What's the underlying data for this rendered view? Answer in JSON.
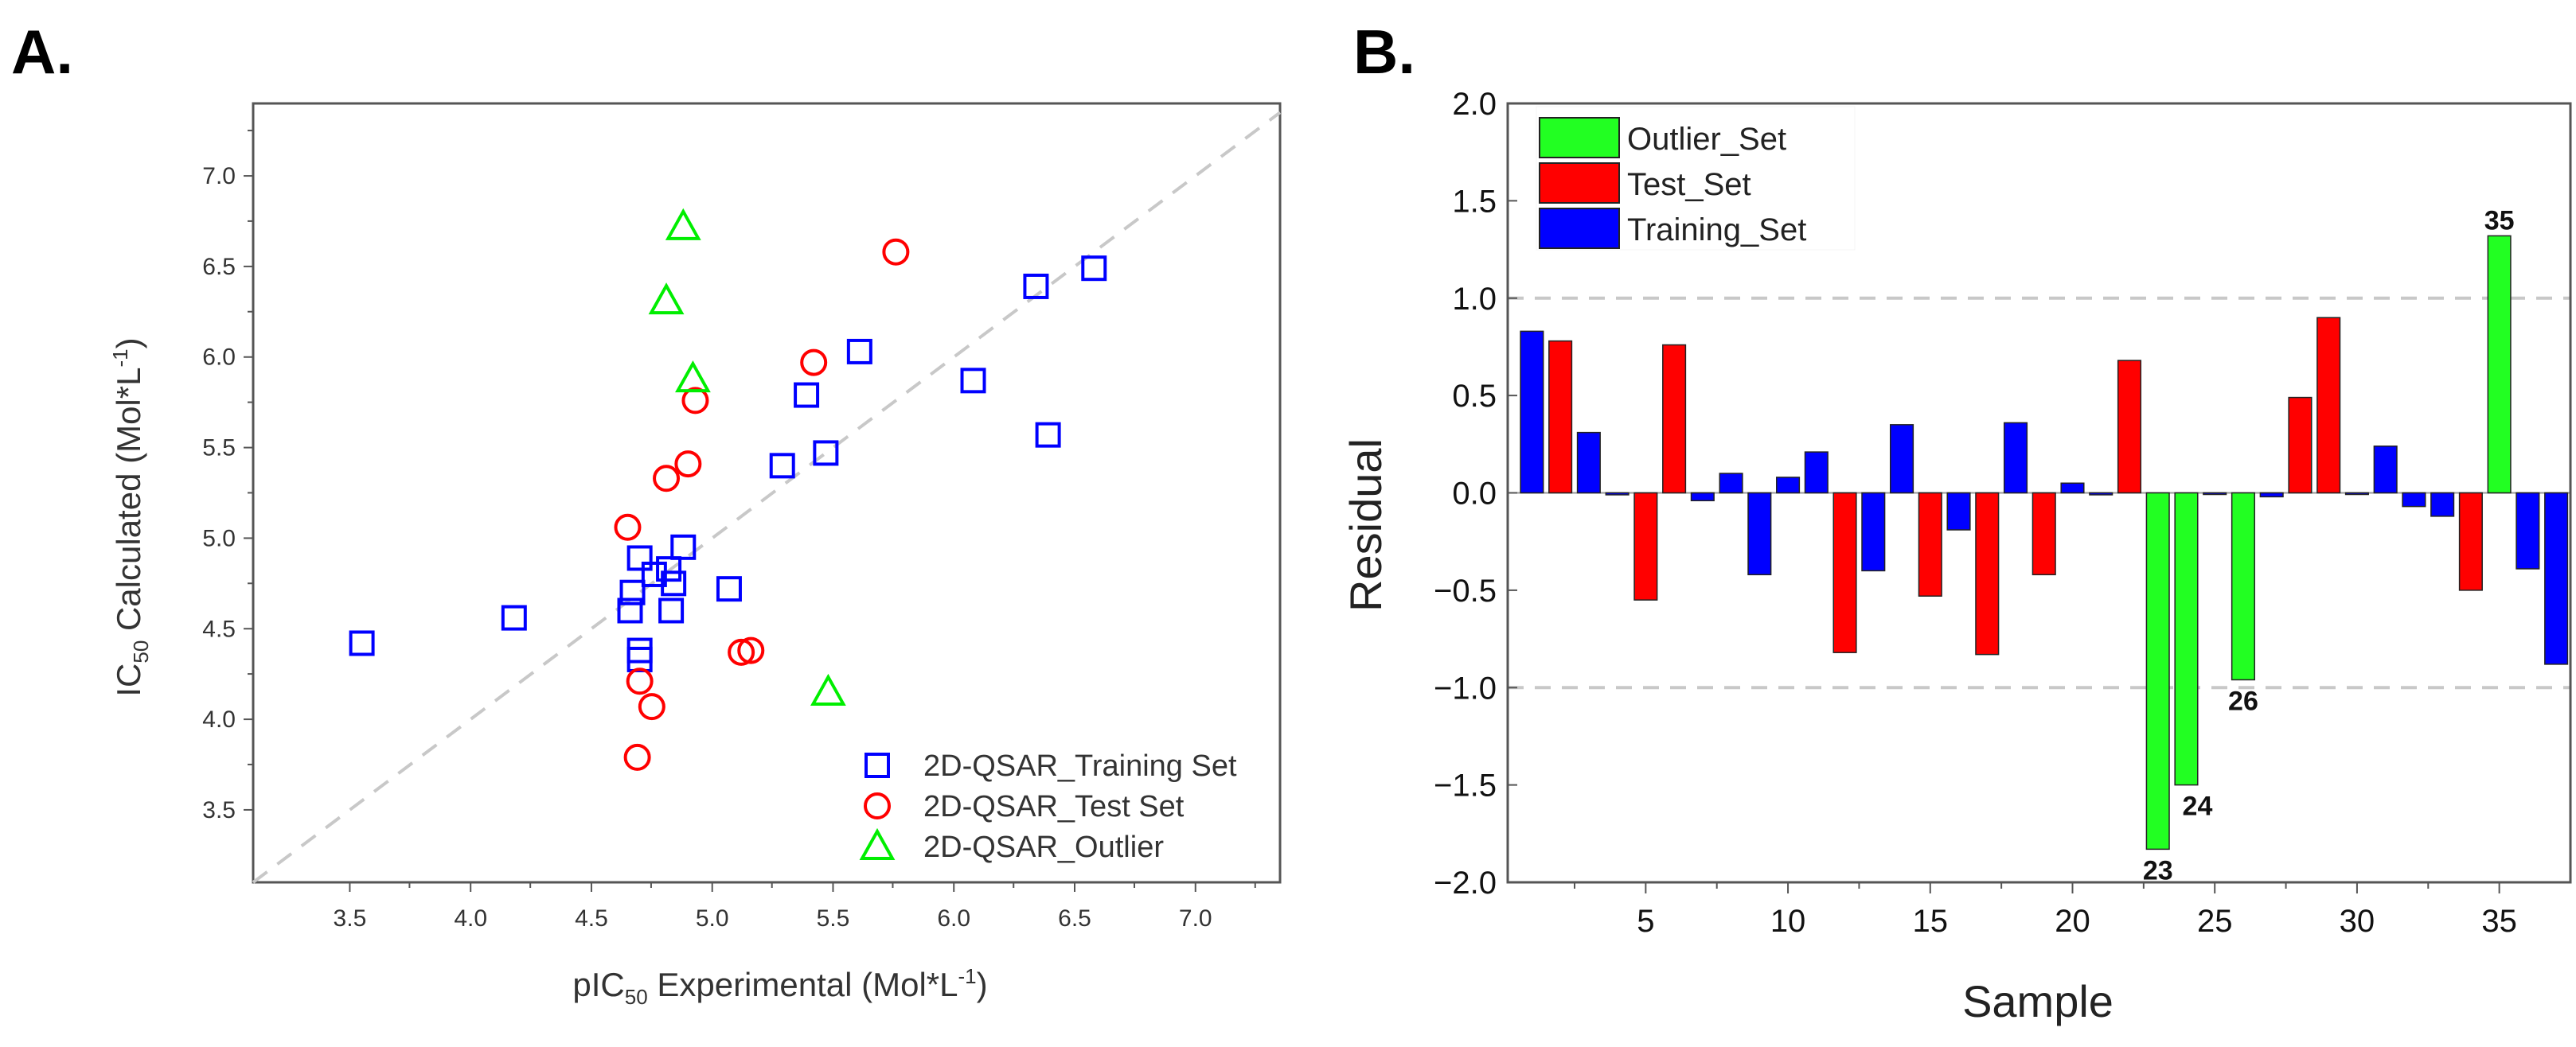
{
  "colors": {
    "training": "#0000ff",
    "test": "#ff0000",
    "outlier": "#00ee00",
    "outlier_bar": "#22ff22",
    "reference": "#c8c8c8"
  },
  "chart_data": [
    {
      "panel_label": "A.",
      "type": "scatter",
      "xlabel": {
        "main": "pIC",
        "sub": "50",
        "rest": " Experimental (Mol*L",
        "sup": "-1",
        "end": ")"
      },
      "ylabel": {
        "main": "IC",
        "sub": "50",
        "rest": " Calculated (Mol*L",
        "sup": "-1",
        "end": ")"
      },
      "xlim": [
        3.1,
        7.35
      ],
      "ylim": [
        3.1,
        7.4
      ],
      "xticks": [
        "3.5",
        "4.0",
        "4.5",
        "5.0",
        "5.5",
        "6.0",
        "6.5",
        "7.0"
      ],
      "yticks": [
        "3.5",
        "4.0",
        "4.5",
        "5.0",
        "5.5",
        "6.0",
        "6.5",
        "7.0"
      ],
      "reference_line": "y = x",
      "legend_position": "bottom-right",
      "series": [
        {
          "name": "2D-QSAR_Training Set",
          "marker": "square",
          "color_key": "training",
          "points": [
            [
              3.55,
              4.42
            ],
            [
              4.18,
              4.56
            ],
            [
              4.66,
              4.6
            ],
            [
              4.67,
              4.7
            ],
            [
              4.7,
              4.89
            ],
            [
              4.7,
              4.38
            ],
            [
              4.7,
              4.33
            ],
            [
              4.76,
              4.8
            ],
            [
              4.82,
              4.83
            ],
            [
              4.83,
              4.6
            ],
            [
              4.84,
              4.75
            ],
            [
              4.88,
              4.95
            ],
            [
              5.07,
              4.72
            ],
            [
              5.29,
              5.4
            ],
            [
              5.47,
              5.47
            ],
            [
              5.39,
              5.79
            ],
            [
              5.61,
              6.03
            ],
            [
              6.08,
              5.87
            ],
            [
              6.39,
              5.57
            ],
            [
              6.34,
              6.39
            ],
            [
              6.58,
              6.49
            ]
          ]
        },
        {
          "name": "2D-QSAR_Test Set",
          "marker": "circle",
          "color_key": "test",
          "points": [
            [
              4.65,
              5.06
            ],
            [
              4.81,
              5.33
            ],
            [
              4.9,
              5.41
            ],
            [
              4.93,
              5.76
            ],
            [
              5.42,
              5.97
            ],
            [
              5.76,
              6.58
            ],
            [
              5.12,
              4.37
            ],
            [
              5.16,
              4.38
            ],
            [
              4.7,
              4.21
            ],
            [
              4.75,
              4.07
            ],
            [
              4.69,
              3.79
            ]
          ]
        },
        {
          "name": "2D-QSAR_Outlier",
          "marker": "triangle",
          "color_key": "outlier",
          "points": [
            [
              4.88,
              6.72
            ],
            [
              4.81,
              6.31
            ],
            [
              4.92,
              5.88
            ],
            [
              5.48,
              4.15
            ]
          ]
        }
      ]
    },
    {
      "panel_label": "B.",
      "type": "bar",
      "xlabel": "Sample",
      "ylabel": "Residual",
      "xlim": [
        0.15,
        37.5
      ],
      "ylim": [
        -2.0,
        2.0
      ],
      "xticks": [
        "5",
        "10",
        "15",
        "20",
        "25",
        "30",
        "35"
      ],
      "yticks": [
        "2.0",
        "1.5",
        "1.0",
        "0.5",
        "0.0",
        "-0.5",
        "-1.0",
        "-1.5",
        "-2.0"
      ],
      "threshold_lines": [
        1.0,
        -1.0
      ],
      "legend_position": "top-left",
      "legend": [
        {
          "name": "Outlier_Set",
          "color_key": "outlier_bar"
        },
        {
          "name": "Test_Set",
          "color_key": "test"
        },
        {
          "name": "Training_Set",
          "color_key": "training"
        }
      ],
      "samples": [
        1,
        2,
        3,
        4,
        5,
        6,
        7,
        8,
        9,
        10,
        11,
        12,
        13,
        14,
        15,
        16,
        17,
        18,
        19,
        20,
        21,
        22,
        23,
        24,
        25,
        26,
        27,
        28,
        29,
        30,
        31,
        32,
        33,
        34,
        35,
        36,
        37
      ],
      "sets": [
        "training",
        "test",
        "training",
        "training",
        "test",
        "test",
        "training",
        "training",
        "training",
        "training",
        "training",
        "test",
        "training",
        "training",
        "test",
        "training",
        "test",
        "training",
        "test",
        "training",
        "training",
        "test",
        "outlier",
        "outlier",
        "training",
        "outlier",
        "training",
        "test",
        "test",
        "training",
        "training",
        "training",
        "training",
        "test",
        "outlier",
        "training",
        "training"
      ],
      "values": [
        0.83,
        0.78,
        0.31,
        -0.01,
        -0.55,
        0.76,
        -0.04,
        0.1,
        -0.42,
        0.08,
        0.21,
        -0.82,
        -0.4,
        0.35,
        -0.53,
        -0.19,
        -0.83,
        0.36,
        -0.42,
        0.05,
        -0.01,
        0.68,
        -1.83,
        -1.5,
        0.0,
        -0.96,
        -0.02,
        0.49,
        0.9,
        0.0,
        0.24,
        -0.07,
        -0.12,
        -0.5,
        1.32,
        -0.39,
        -0.88
      ],
      "annotations": [
        {
          "sample": 23,
          "text": "23"
        },
        {
          "sample": 24,
          "text": "24"
        },
        {
          "sample": 26,
          "text": "26"
        },
        {
          "sample": 35,
          "text": "35"
        }
      ]
    }
  ]
}
